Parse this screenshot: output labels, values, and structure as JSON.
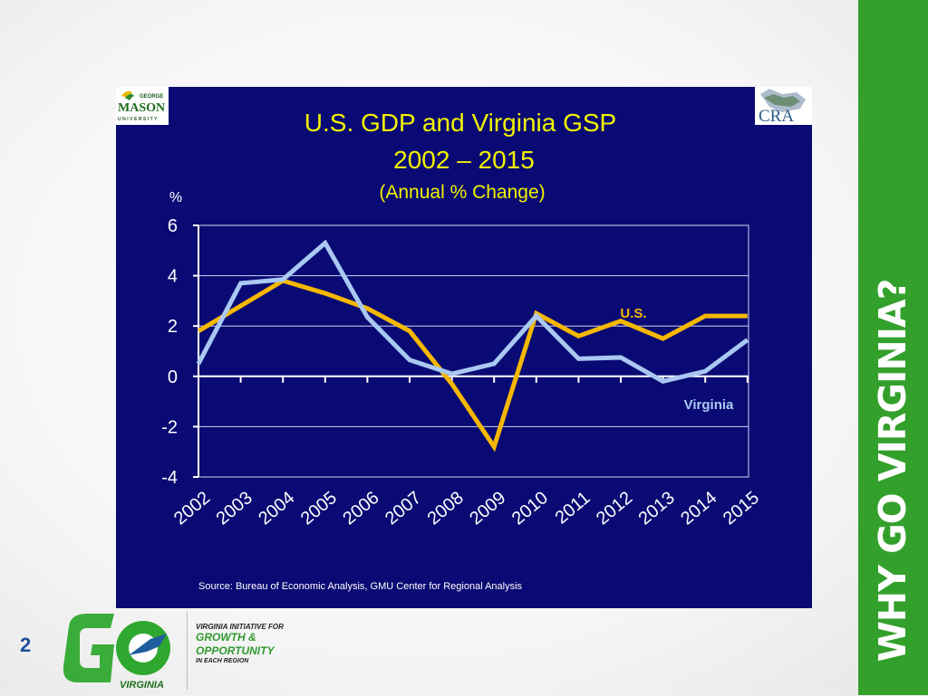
{
  "slide": {
    "number": "2",
    "side_banner": "WHY GO VIRGINIA?",
    "go_logo_word": "GO",
    "go_logo_sub": "VIRGINIA",
    "tagline_top": "VIRGINIA INITIATIVE FOR",
    "tagline_line1": "GROWTH &",
    "tagline_line2": "OPPORTUNITY",
    "tagline_bottom": "IN EACH REGION",
    "gmu_logo_text": [
      "GEORGE",
      "MASON",
      "UNIVERSITY"
    ],
    "cra_logo_text": "CRA",
    "colors": {
      "banner_green": "#33a02c",
      "panel_navy": "#0a0a74",
      "title_yellow": "#f2f200",
      "us_line": "#f5b800",
      "va_line": "#a9c8f2"
    }
  },
  "chart_data": {
    "type": "line",
    "title": "U.S. GDP and Virginia GSP",
    "subtitle": "2002 – 2015",
    "subtitle2": "(Annual % Change)",
    "ylabel": "%",
    "xlabel": "",
    "ylim": [
      -4,
      6
    ],
    "yticks": [
      "6",
      "4",
      "2",
      "0",
      "-2",
      "-4"
    ],
    "categories": [
      "2002",
      "2003",
      "2004",
      "2005",
      "2006",
      "2007",
      "2008",
      "2009",
      "2010",
      "2011",
      "2012",
      "2013",
      "2014",
      "2015"
    ],
    "series": [
      {
        "name": "U.S.",
        "color": "#f5b800",
        "values": [
          1.8,
          2.8,
          3.8,
          3.3,
          2.7,
          1.8,
          -0.3,
          -2.8,
          2.5,
          1.6,
          2.2,
          1.5,
          2.4,
          2.4
        ]
      },
      {
        "name": "Virginia",
        "color": "#a9c8f2",
        "values": [
          0.5,
          3.7,
          3.85,
          5.3,
          2.35,
          0.65,
          0.1,
          0.5,
          2.4,
          0.7,
          0.75,
          -0.2,
          0.2,
          1.45
        ]
      }
    ],
    "grid": true,
    "legend": "inline labels",
    "source": "Source: Bureau of Economic Analysis, GMU Center for Regional Analysis"
  }
}
